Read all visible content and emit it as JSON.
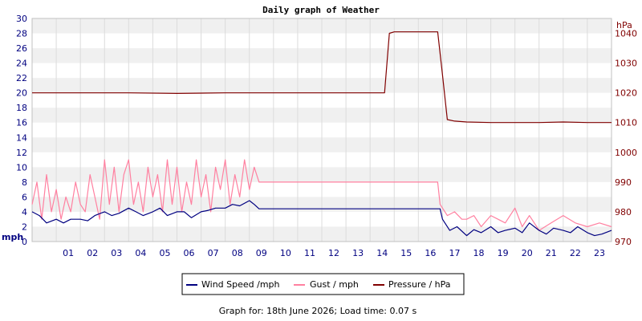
{
  "chart_data": {
    "type": "line",
    "title": "Daily graph of Weather",
    "footer": "Graph for: 18th June 2026; Load time: 0.07 s",
    "x_ticks": [
      "01",
      "02",
      "03",
      "04",
      "05",
      "06",
      "07",
      "08",
      "09",
      "10",
      "11",
      "12",
      "13",
      "14",
      "15",
      "16",
      "17",
      "18",
      "19",
      "20",
      "21",
      "22",
      "23"
    ],
    "xlim": [
      0,
      24
    ],
    "left_axis": {
      "unit": "mph",
      "ylim": [
        0,
        30
      ],
      "ticks": [
        0,
        2,
        4,
        6,
        8,
        10,
        12,
        14,
        16,
        18,
        20,
        22,
        24,
        26,
        28,
        30
      ],
      "color": "#000080"
    },
    "right_axis": {
      "unit": "hPa",
      "ylim": [
        970,
        1045
      ],
      "ticks": [
        970,
        980,
        990,
        1000,
        1010,
        1020,
        1030,
        1040
      ],
      "color": "#800000"
    },
    "grid": true,
    "legend_position": "bottom",
    "series": [
      {
        "name": "Wind Speed /mph",
        "axis": "left",
        "color": "#000080",
        "x": [
          0,
          0.3,
          0.6,
          1,
          1.3,
          1.6,
          2,
          2.3,
          2.6,
          3,
          3.3,
          3.6,
          4,
          4.3,
          4.6,
          5,
          5.3,
          5.6,
          6,
          6.3,
          6.6,
          7,
          7.3,
          7.6,
          8,
          8.3,
          8.6,
          9,
          9.2,
          9.4,
          10,
          12,
          14,
          16,
          16.9,
          17,
          17.3,
          17.6,
          18,
          18.3,
          18.6,
          19,
          19.3,
          19.6,
          20,
          20.3,
          20.6,
          21,
          21.3,
          21.6,
          22,
          22.3,
          22.6,
          23,
          23.3,
          23.6,
          24
        ],
        "values": [
          4,
          3.5,
          2.5,
          3,
          2.5,
          3,
          3,
          2.8,
          3.5,
          4,
          3.5,
          3.8,
          4.5,
          4,
          3.5,
          4,
          4.5,
          3.5,
          4,
          4,
          3.2,
          4,
          4.2,
          4.5,
          4.5,
          5,
          4.8,
          5.5,
          5,
          4.4,
          4.4,
          4.4,
          4.4,
          4.4,
          4.4,
          3,
          1.5,
          2,
          0.8,
          1.6,
          1.2,
          2,
          1.2,
          1.5,
          1.8,
          1.2,
          2.5,
          1.5,
          1,
          1.8,
          1.5,
          1.2,
          2,
          1.2,
          0.8,
          1,
          1.5
        ]
      },
      {
        "name": "Gust / mph",
        "axis": "left",
        "color": "#ff80a0",
        "x": [
          0,
          0.2,
          0.4,
          0.6,
          0.8,
          1,
          1.2,
          1.4,
          1.6,
          1.8,
          2,
          2.2,
          2.4,
          2.6,
          2.8,
          3,
          3.2,
          3.4,
          3.6,
          3.8,
          4,
          4.2,
          4.4,
          4.6,
          4.8,
          5,
          5.2,
          5.4,
          5.6,
          5.8,
          6,
          6.2,
          6.4,
          6.6,
          6.8,
          7,
          7.2,
          7.4,
          7.6,
          7.8,
          8,
          8.2,
          8.4,
          8.6,
          8.8,
          9,
          9.2,
          9.4,
          10,
          12,
          14,
          16,
          16.8,
          16.9,
          17,
          17.2,
          17.5,
          17.8,
          18,
          18.3,
          18.6,
          19,
          19.3,
          19.6,
          20,
          20.3,
          20.6,
          21,
          21.5,
          22,
          22.5,
          23,
          23.5,
          24
        ],
        "values": [
          5,
          8,
          3,
          9,
          4,
          7,
          3,
          6,
          4,
          8,
          5,
          4,
          9,
          6,
          3,
          11,
          5,
          10,
          4,
          9,
          11,
          5,
          8,
          4,
          10,
          6,
          9,
          4,
          11,
          5,
          10,
          4,
          8,
          5,
          11,
          6,
          9,
          4,
          10,
          7,
          11,
          5,
          9,
          6,
          11,
          7,
          10,
          8,
          8,
          8,
          8,
          8,
          8,
          5,
          4.5,
          3.5,
          4,
          3,
          3,
          3.5,
          2,
          3.5,
          3,
          2.5,
          4.5,
          2,
          3.5,
          1.5,
          2.5,
          3.5,
          2.5,
          2,
          2.5,
          2
        ]
      },
      {
        "name": "Pressure / hPa",
        "axis": "right",
        "color": "#800000",
        "x": [
          0,
          2,
          4,
          6,
          8,
          10,
          12,
          14,
          14.6,
          14.8,
          15,
          16,
          16.8,
          17,
          17.2,
          17.5,
          18,
          19,
          20,
          21,
          22,
          23,
          24
        ],
        "values": [
          1020,
          1020,
          1020,
          1019.8,
          1020,
          1020,
          1020,
          1020,
          1020,
          1040,
          1040.5,
          1040.5,
          1040.5,
          1026,
          1011,
          1010.5,
          1010.2,
          1010,
          1010,
          1010,
          1010.2,
          1010,
          1010
        ]
      }
    ]
  }
}
